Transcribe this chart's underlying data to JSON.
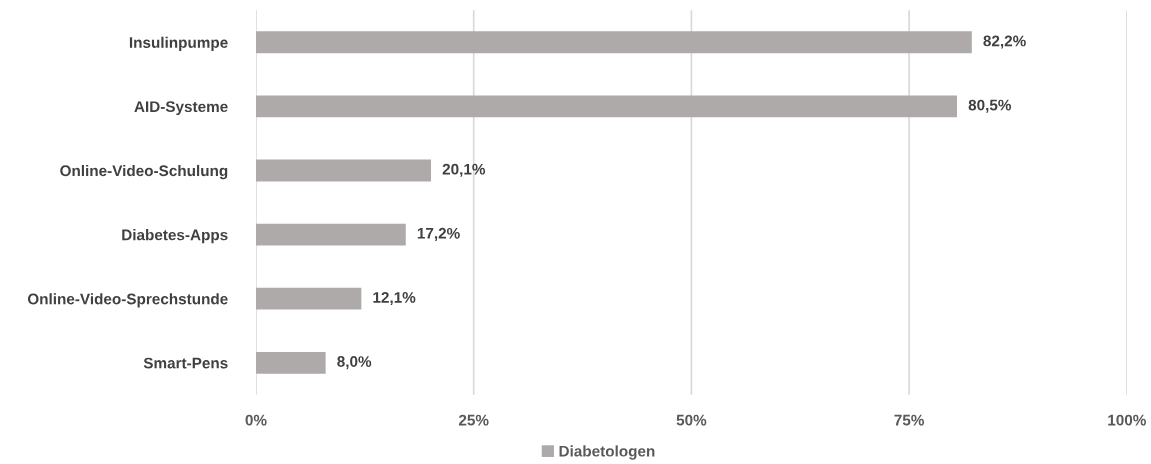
{
  "chart_data": {
    "type": "bar",
    "orientation": "horizontal",
    "categories": [
      "Insulinpumpe",
      "AID-Systeme",
      "Online-Video-Schulung",
      "Diabetes-Apps",
      "Online-Video-Sprechstunde",
      "Smart-Pens"
    ],
    "series": [
      {
        "name": "Diabetologen",
        "color": "#aeaaaa",
        "values": [
          82.2,
          80.5,
          20.1,
          17.2,
          12.1,
          8.0
        ],
        "value_labels": [
          "82,2%",
          "80,5%",
          "20,1%",
          "17,2%",
          "12,1%",
          "8,0%"
        ]
      }
    ],
    "xlim": [
      0,
      100
    ],
    "xticks": [
      {
        "value": 0,
        "label": "0%"
      },
      {
        "value": 25,
        "label": "25%"
      },
      {
        "value": 50,
        "label": "50%"
      },
      {
        "value": 75,
        "label": "75%"
      },
      {
        "value": 100,
        "label": "100%"
      }
    ],
    "grid": "x",
    "legend": "bottom"
  }
}
